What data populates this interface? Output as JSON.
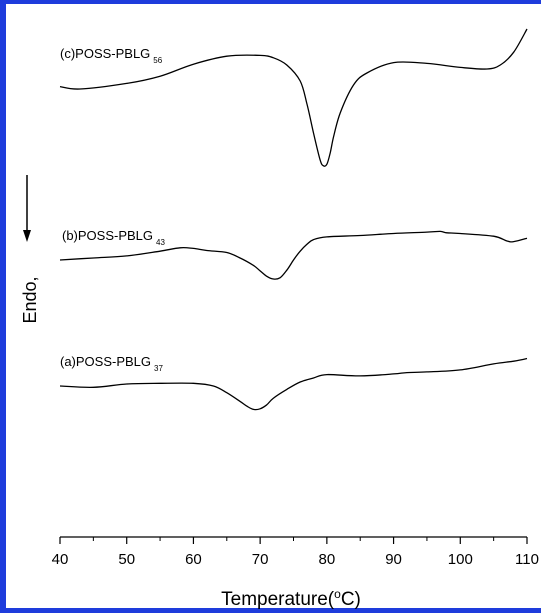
{
  "chart_data": {
    "type": "line",
    "title": "",
    "xlabel": "Temperature(°C)",
    "xlabel_parts": {
      "main": "Temperature(",
      "sup": "o",
      "tail": "C)"
    },
    "ylabel": "Endo,",
    "xlim": [
      40,
      110
    ],
    "xticks": [
      40,
      50,
      60,
      70,
      80,
      90,
      100,
      110
    ],
    "grid": false,
    "colors": {
      "frame": "#1e3cdc",
      "line": "#000000"
    },
    "series": [
      {
        "name": "(c)POSS-PBLG 56",
        "label_main": "(c)POSS-PBLG",
        "label_sub": "56",
        "x": [
          40,
          43,
          50,
          55,
          60,
          65,
          70,
          72,
          74,
          76,
          77,
          78,
          79,
          79.5,
          80,
          80.5,
          81,
          82,
          84,
          86,
          90,
          95,
          100,
          104,
          106,
          108,
          110
        ],
        "y": [
          0.3,
          0.0,
          0.7,
          1.6,
          3.1,
          4.1,
          4.2,
          3.9,
          3.0,
          1.0,
          -1.8,
          -5.5,
          -8.9,
          -9.6,
          -9.4,
          -8.0,
          -6.0,
          -3.0,
          0.5,
          2.0,
          3.3,
          3.2,
          2.7,
          2.5,
          3.0,
          4.6,
          7.5
        ]
      },
      {
        "name": "(b)POSS-PBLG 43",
        "label_main": "(b)POSS-PBLG",
        "label_sub": "43",
        "x": [
          40,
          45,
          50,
          55,
          58,
          60,
          62,
          65,
          67,
          69,
          70,
          71,
          72,
          73,
          74,
          75,
          76,
          77,
          78,
          80,
          85,
          90,
          95,
          97,
          98,
          100,
          105,
          107,
          108,
          110
        ],
        "y": [
          0.0,
          0.3,
          0.6,
          1.3,
          1.8,
          1.7,
          1.4,
          1.1,
          0.3,
          -0.8,
          -1.6,
          -2.4,
          -2.8,
          -2.6,
          -1.5,
          0.0,
          1.3,
          2.3,
          3.0,
          3.4,
          3.6,
          3.9,
          4.1,
          4.2,
          4.0,
          3.9,
          3.5,
          2.8,
          2.7,
          3.2
        ]
      },
      {
        "name": "(a)POSS-PBLG 37",
        "label_main": "(a)POSS-PBLG",
        "label_sub": "37",
        "x": [
          40,
          45,
          50,
          55,
          60,
          63,
          65,
          67,
          68,
          69,
          70,
          71,
          72,
          74,
          76,
          78,
          80,
          85,
          90,
          92,
          95,
          100,
          105,
          108,
          110
        ],
        "y": [
          0.0,
          -0.2,
          0.3,
          0.4,
          0.4,
          0.0,
          -1.0,
          -2.3,
          -3.0,
          -3.5,
          -3.4,
          -2.8,
          -1.8,
          -0.5,
          0.6,
          1.2,
          1.7,
          1.5,
          1.8,
          2.0,
          2.1,
          2.4,
          3.3,
          3.7,
          4.1
        ]
      }
    ]
  }
}
